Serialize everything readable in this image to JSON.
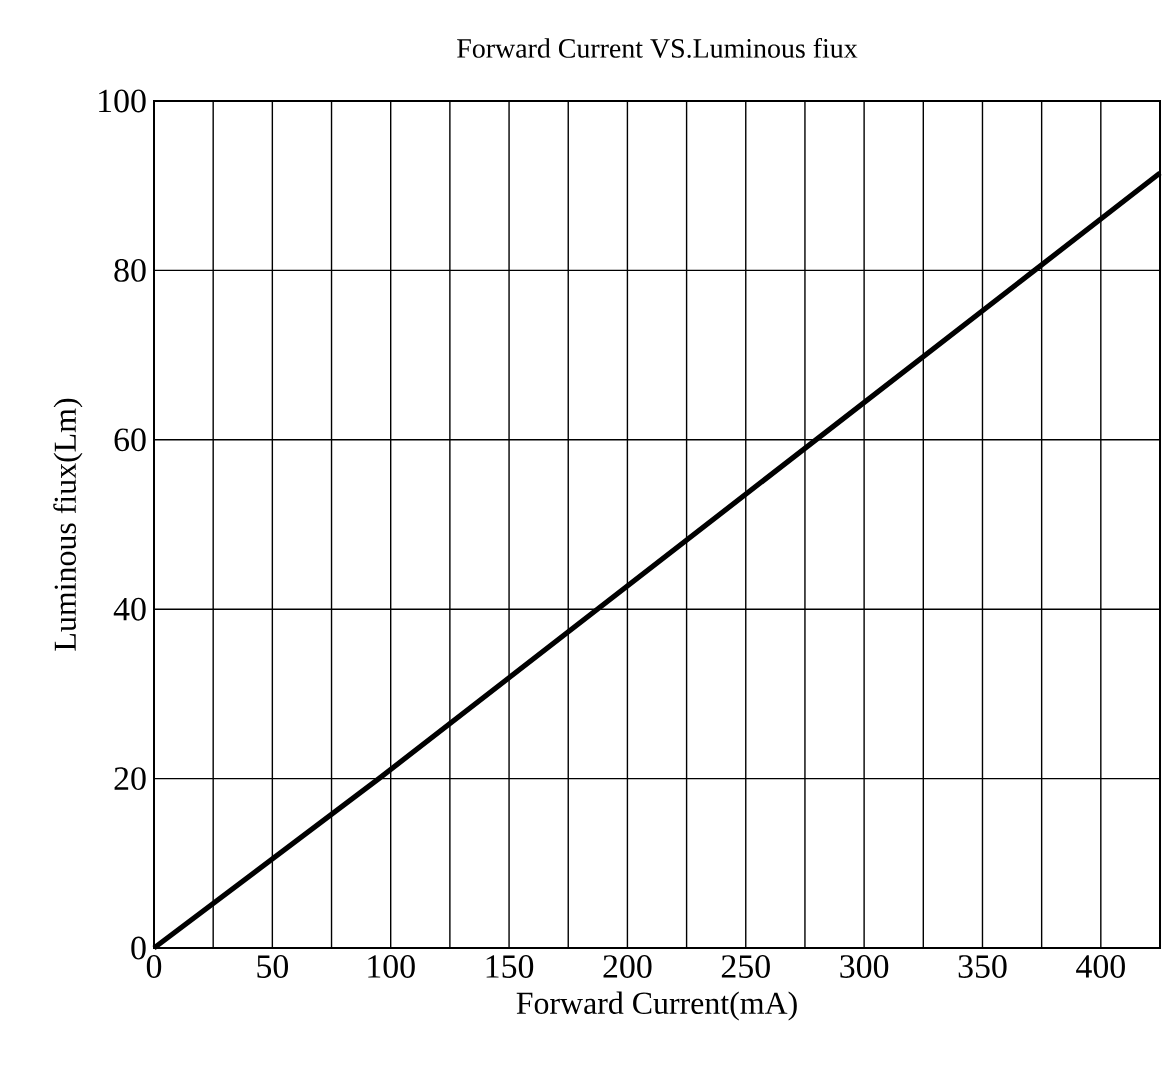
{
  "chart_data": {
    "type": "line",
    "title": "Forward Current VS.Luminous fiux",
    "xlabel": "Forward Current(mA)",
    "ylabel": "Luminous fiux(Lm)",
    "xlim": [
      0,
      425
    ],
    "ylim": [
      0,
      100
    ],
    "xticks": [
      0,
      {
        "value": 25,
        "label": null
      },
      50,
      {
        "value": 75,
        "label": null
      },
      100,
      {
        "value": 125,
        "label": null
      },
      150,
      {
        "value": 175,
        "label": null
      },
      200,
      {
        "value": 225,
        "label": null
      },
      250,
      {
        "value": 275,
        "label": null
      },
      300,
      {
        "value": 325,
        "label": null
      },
      350,
      {
        "value": 375,
        "label": null
      },
      400,
      {
        "value": 425,
        "label": null
      }
    ],
    "yticks": [
      0,
      20,
      40,
      60,
      80,
      100
    ],
    "grid": true,
    "marker": "none",
    "line_style": "solid",
    "x": [
      0,
      95,
      372,
      425
    ],
    "series": [
      {
        "color": "#000000",
        "values": [
          0,
          20,
          80,
          91.5
        ]
      }
    ]
  }
}
